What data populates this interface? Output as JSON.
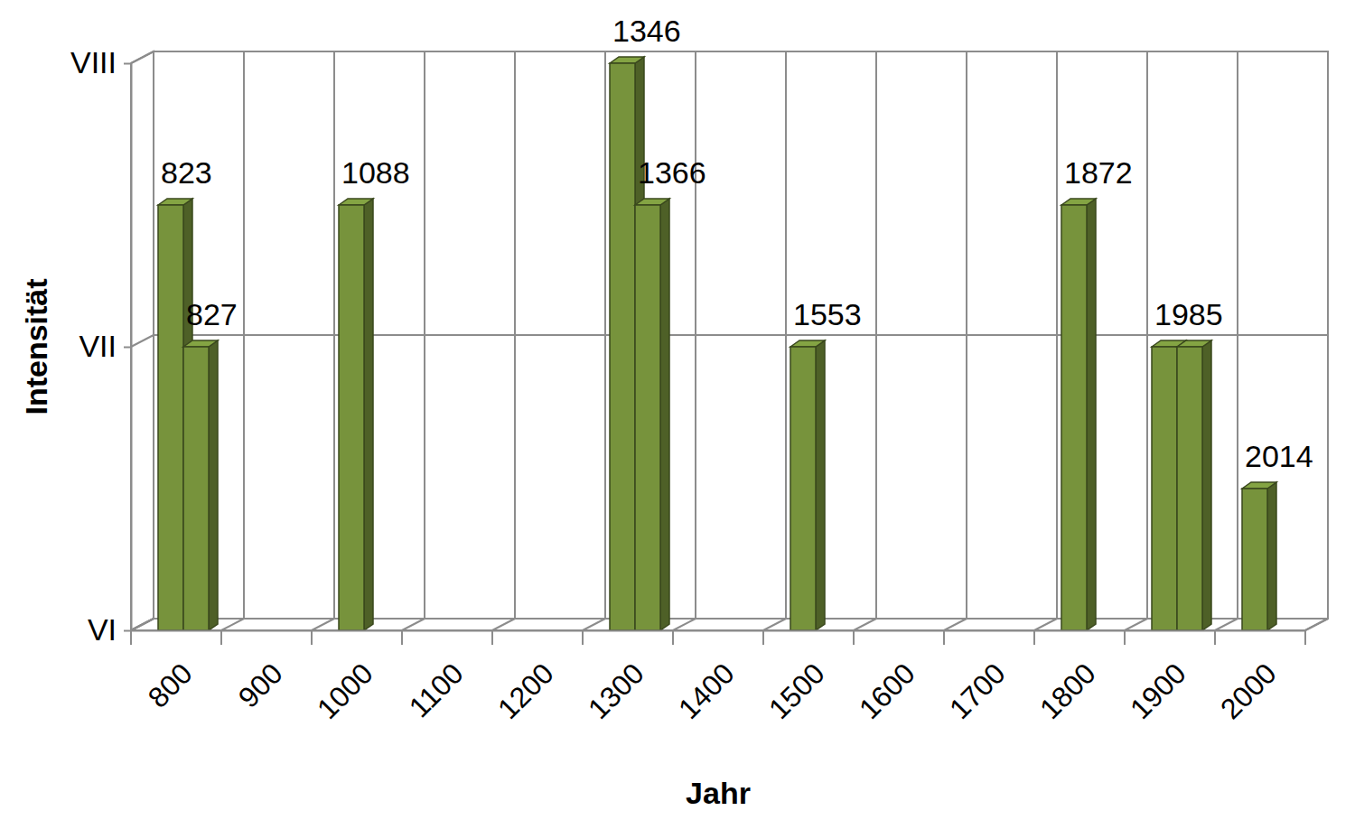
{
  "chart_data": {
    "type": "bar",
    "x_label": "Jahr",
    "y_label": "Intensität",
    "categories": [
      "800",
      "900",
      "1000",
      "1100",
      "1200",
      "1300",
      "1400",
      "1500",
      "1600",
      "1700",
      "1800",
      "1900",
      "2000"
    ],
    "series": [
      {
        "values": [
          7.5,
          null,
          7.5,
          null,
          null,
          8,
          null,
          7,
          null,
          null,
          7.5,
          7,
          6.5
        ],
        "labels": [
          "823",
          null,
          "1088",
          null,
          null,
          "1346",
          null,
          "1553",
          null,
          null,
          "1872",
          "1985",
          "2014"
        ]
      },
      {
        "values": [
          7,
          null,
          null,
          null,
          null,
          7.5,
          null,
          null,
          null,
          null,
          null,
          7,
          null
        ],
        "labels": [
          "827",
          null,
          null,
          null,
          null,
          "1366",
          null,
          null,
          null,
          null,
          null,
          null,
          null
        ]
      }
    ],
    "color": "#77933c",
    "ylim": [
      6,
      8
    ],
    "yticks": [
      {
        "value": 6,
        "label": "VI"
      },
      {
        "value": 7,
        "label": "VII"
      },
      {
        "value": 8,
        "label": "VIII"
      }
    ],
    "grid": true
  }
}
